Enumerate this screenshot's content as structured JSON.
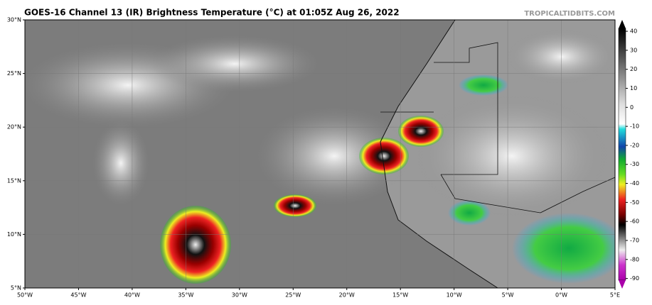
{
  "title": "GOES-16 Channel 13 (IR) Brightness Temperature (°C) at 01:05Z Aug 26, 2022",
  "watermark": "TROPICALTIDBITS.COM",
  "map": {
    "xlim": [
      -50,
      5
    ],
    "ylim": [
      5,
      30
    ],
    "xticks": [
      {
        "value": -50,
        "label": "50°W"
      },
      {
        "value": -45,
        "label": "45°W"
      },
      {
        "value": -40,
        "label": "40°W"
      },
      {
        "value": -35,
        "label": "35°W"
      },
      {
        "value": -30,
        "label": "30°W"
      },
      {
        "value": -25,
        "label": "25°W"
      },
      {
        "value": -20,
        "label": "20°W"
      },
      {
        "value": -15,
        "label": "15°W"
      },
      {
        "value": -10,
        "label": "10°W"
      },
      {
        "value": -5,
        "label": "5°W"
      },
      {
        "value": 0,
        "label": "0°W"
      },
      {
        "value": 5,
        "label": "5°E"
      }
    ],
    "yticks": [
      {
        "value": 30,
        "label": "30°N"
      },
      {
        "value": 25,
        "label": "25°N"
      },
      {
        "value": 20,
        "label": "20°N"
      },
      {
        "value": 15,
        "label": "15°N"
      },
      {
        "value": 10,
        "label": "10°N"
      },
      {
        "value": 5,
        "label": "5°N"
      }
    ]
  },
  "colorbar": {
    "clim": [
      -95,
      46
    ],
    "ticks": [
      40,
      30,
      20,
      10,
      0,
      -10,
      -20,
      -30,
      -40,
      -50,
      -60,
      -70,
      -80,
      -90
    ]
  }
}
